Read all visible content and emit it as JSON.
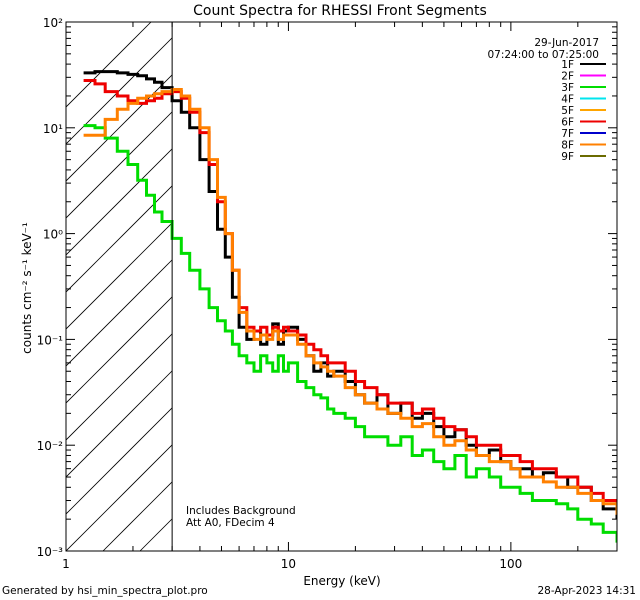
{
  "chart_data": {
    "type": "line",
    "title": "Count Spectra for RHESSI Front Segments",
    "xlabel": "Energy (keV)",
    "ylabel": "counts cm⁻² s⁻¹ keV⁻¹",
    "x_scale": "log",
    "y_scale": "log",
    "xlim": [
      1,
      300
    ],
    "ylim": [
      0.001,
      100
    ],
    "x_ticks": [
      {
        "value": 1,
        "label": "1"
      },
      {
        "value": 10,
        "label": "10"
      },
      {
        "value": 100,
        "label": "100"
      }
    ],
    "y_ticks": [
      {
        "value": 100,
        "label": "10²"
      },
      {
        "value": 10,
        "label": "10¹"
      },
      {
        "value": 1,
        "label": "10⁰"
      },
      {
        "value": 0.1,
        "label": "10⁻¹"
      },
      {
        "value": 0.01,
        "label": "10⁻²"
      },
      {
        "value": 0.001,
        "label": "10⁻³"
      }
    ],
    "date": "29-Jun-2017",
    "time_range": "07:24:00 to 07:25:00",
    "excluded_region_max_kev": 3,
    "annotations": [
      "Includes Background",
      "Att A0, FDecim 4"
    ],
    "legend_position": "top-right",
    "legend": [
      {
        "name": "1F",
        "color": "#000000"
      },
      {
        "name": "2F",
        "color": "#ff00ff"
      },
      {
        "name": "3F",
        "color": "#00dd00"
      },
      {
        "name": "4F",
        "color": "#00e5ee"
      },
      {
        "name": "5F",
        "color": "#ffa500"
      },
      {
        "name": "6F",
        "color": "#ee0000"
      },
      {
        "name": "7F",
        "color": "#0000cc"
      },
      {
        "name": "8F",
        "color": "#ff8000"
      },
      {
        "name": "9F",
        "color": "#6b6b00"
      }
    ],
    "series": [
      {
        "name": "1F",
        "color": "#000000",
        "x": [
          1.2,
          1.35,
          1.5,
          1.7,
          1.9,
          2.1,
          2.3,
          2.5,
          2.7,
          3.0,
          3.3,
          3.6,
          4.0,
          4.4,
          4.8,
          5.2,
          5.6,
          6.0,
          6.5,
          7.0,
          7.5,
          8.0,
          8.5,
          9.0,
          9.5,
          10,
          11,
          12,
          13,
          14,
          15,
          16,
          18,
          20,
          22,
          25,
          28,
          32,
          36,
          40,
          45,
          50,
          56,
          63,
          70,
          80,
          90,
          100,
          110,
          125,
          140,
          160,
          180,
          200,
          230,
          260,
          300
        ],
        "y": [
          33,
          34,
          34,
          33,
          32,
          31,
          29,
          27,
          24,
          18,
          14,
          10,
          5,
          2.5,
          1.1,
          0.6,
          0.25,
          0.13,
          0.1,
          0.12,
          0.09,
          0.11,
          0.14,
          0.09,
          0.12,
          0.13,
          0.1,
          0.07,
          0.05,
          0.06,
          0.045,
          0.05,
          0.04,
          0.03,
          0.025,
          0.03,
          0.02,
          0.025,
          0.018,
          0.02,
          0.015,
          0.012,
          0.014,
          0.01,
          0.008,
          0.009,
          0.007,
          0.006,
          0.006,
          0.005,
          0.0055,
          0.005,
          0.004,
          0.004,
          0.003,
          0.0025,
          0.002
        ]
      },
      {
        "name": "3F",
        "color": "#00dd00",
        "x": [
          1.2,
          1.35,
          1.5,
          1.7,
          1.9,
          2.1,
          2.3,
          2.5,
          2.7,
          3.0,
          3.3,
          3.6,
          4.0,
          4.4,
          4.8,
          5.2,
          5.6,
          6.0,
          6.5,
          7.0,
          7.5,
          8.0,
          8.5,
          9.0,
          9.5,
          10,
          11,
          12,
          13,
          14,
          15,
          16,
          18,
          20,
          22,
          25,
          28,
          32,
          36,
          40,
          45,
          50,
          56,
          63,
          70,
          80,
          90,
          100,
          110,
          125,
          140,
          160,
          180,
          200,
          230,
          260,
          300
        ],
        "y": [
          10.5,
          10,
          8,
          6,
          4.5,
          3.2,
          2.3,
          1.6,
          1.3,
          0.9,
          0.65,
          0.45,
          0.3,
          0.2,
          0.15,
          0.12,
          0.09,
          0.07,
          0.06,
          0.05,
          0.07,
          0.06,
          0.05,
          0.07,
          0.05,
          0.06,
          0.04,
          0.035,
          0.03,
          0.028,
          0.022,
          0.02,
          0.018,
          0.015,
          0.012,
          0.012,
          0.01,
          0.012,
          0.008,
          0.009,
          0.007,
          0.006,
          0.008,
          0.005,
          0.006,
          0.005,
          0.004,
          0.004,
          0.0035,
          0.003,
          0.003,
          0.0028,
          0.0025,
          0.002,
          0.0018,
          0.0015,
          0.0012
        ]
      },
      {
        "name": "6F",
        "color": "#ee0000",
        "x": [
          1.2,
          1.35,
          1.5,
          1.7,
          1.9,
          2.1,
          2.3,
          2.5,
          2.7,
          3.0,
          3.3,
          3.6,
          4.0,
          4.4,
          4.8,
          5.2,
          5.6,
          6.0,
          6.5,
          7.0,
          7.5,
          8.0,
          8.5,
          9.0,
          9.5,
          10,
          11,
          12,
          13,
          14,
          15,
          16,
          18,
          20,
          22,
          25,
          28,
          32,
          36,
          40,
          45,
          50,
          56,
          63,
          70,
          80,
          90,
          100,
          110,
          125,
          140,
          160,
          180,
          200,
          230,
          260,
          300
        ],
        "y": [
          28,
          26,
          22,
          20,
          18,
          17,
          18,
          19,
          21,
          22,
          19,
          14,
          9,
          4.5,
          2,
          1,
          0.45,
          0.2,
          0.13,
          0.12,
          0.13,
          0.11,
          0.13,
          0.12,
          0.13,
          0.12,
          0.11,
          0.09,
          0.08,
          0.07,
          0.06,
          0.06,
          0.05,
          0.04,
          0.035,
          0.03,
          0.025,
          0.025,
          0.02,
          0.022,
          0.018,
          0.015,
          0.014,
          0.012,
          0.01,
          0.01,
          0.008,
          0.008,
          0.007,
          0.006,
          0.006,
          0.005,
          0.005,
          0.004,
          0.0035,
          0.003,
          0.0025
        ]
      },
      {
        "name": "8F",
        "color": "#ff8000",
        "x": [
          1.2,
          1.35,
          1.5,
          1.7,
          1.9,
          2.1,
          2.3,
          2.5,
          2.7,
          3.0,
          3.3,
          3.6,
          4.0,
          4.4,
          4.8,
          5.2,
          5.6,
          6.0,
          6.5,
          7.0,
          7.5,
          8.0,
          8.5,
          9.0,
          9.5,
          10,
          11,
          12,
          13,
          14,
          15,
          16,
          18,
          20,
          22,
          25,
          28,
          32,
          36,
          40,
          45,
          50,
          56,
          63,
          70,
          80,
          90,
          100,
          110,
          125,
          140,
          160,
          180,
          200,
          230,
          260,
          300
        ],
        "y": [
          8.5,
          8.5,
          12,
          15,
          17,
          19,
          20,
          21,
          22,
          23,
          20,
          15,
          10,
          5,
          2.2,
          1.0,
          0.45,
          0.18,
          0.12,
          0.1,
          0.11,
          0.1,
          0.12,
          0.1,
          0.11,
          0.11,
          0.09,
          0.07,
          0.06,
          0.055,
          0.05,
          0.045,
          0.035,
          0.03,
          0.025,
          0.022,
          0.02,
          0.018,
          0.015,
          0.016,
          0.012,
          0.01,
          0.011,
          0.009,
          0.008,
          0.007,
          0.007,
          0.006,
          0.005,
          0.005,
          0.0045,
          0.004,
          0.004,
          0.0035,
          0.003,
          0.0028,
          0.0022
        ]
      }
    ]
  },
  "footer": {
    "left": "Generated by hsi_min_spectra_plot.pro",
    "right": "28-Apr-2023 14:31"
  }
}
